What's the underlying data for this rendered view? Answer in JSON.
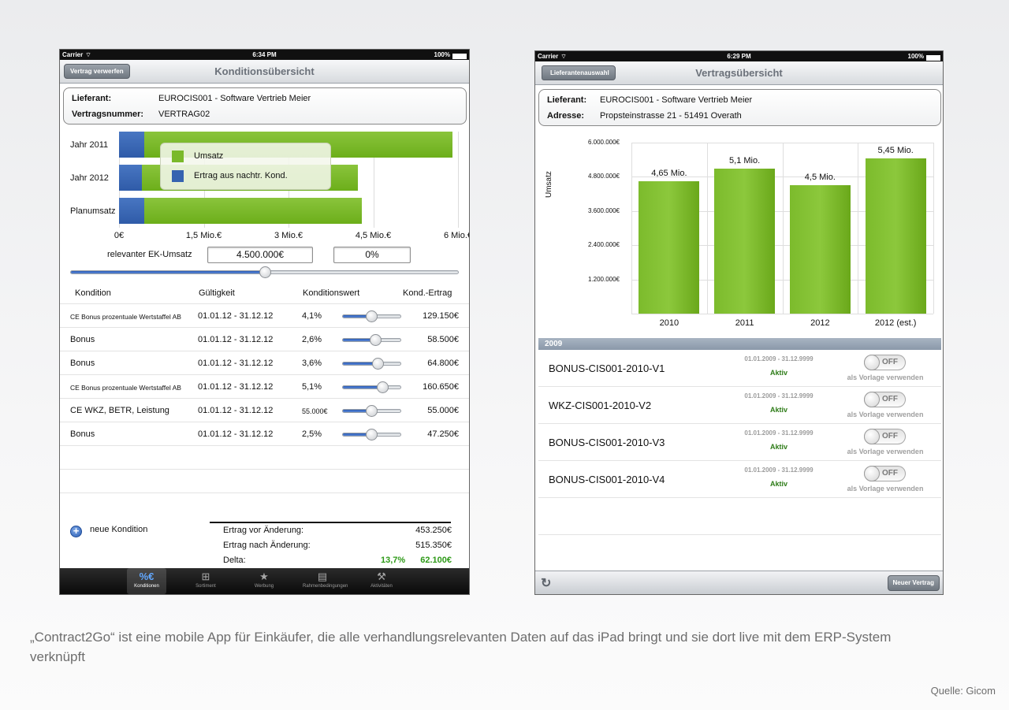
{
  "left": {
    "status": {
      "carrier": "Carrier",
      "time": "6:34 PM",
      "battery": "100%"
    },
    "nav": {
      "title": "Konditionsübersicht",
      "button": "Vertrag verwerfen"
    },
    "info": {
      "supplier_label": "Lieferant:",
      "supplier_value": "EUROCIS001 - Software Vertrieb Meier",
      "contract_label": "Vertragsnummer:",
      "contract_value": "VERTRAG02"
    },
    "chart_data": {
      "type": "bar",
      "orientation": "horizontal",
      "stacked": true,
      "categories": [
        "Jahr 2011",
        "Jahr 2012",
        "Planumsatz"
      ],
      "series": [
        {
          "name": "Umsatz",
          "color": "#7ab92a",
          "values": [
            5.45,
            3.83,
            3.85
          ]
        },
        {
          "name": "Ertrag aus nachtr. Kond.",
          "color": "#3563b0",
          "values": [
            0.45,
            0.4,
            0.45
          ]
        }
      ],
      "x_ticks": [
        "0€",
        "1,5 Mio.€",
        "3 Mio.€",
        "4,5 Mio.€",
        "6 Mio.€"
      ],
      "xlim": [
        0,
        6
      ],
      "legend_position": "top-center"
    },
    "ek": {
      "label": "relevanter EK-Umsatz",
      "amount": "4.500.000€",
      "percent": "0%",
      "slider_fraction": 0.5
    },
    "table": {
      "headers": [
        "Kondition",
        "Gültigkeit",
        "Konditionswert",
        "Kond.-Ertrag"
      ],
      "rows": [
        {
          "name": "CE Bonus prozentuale Wertstaffel AB",
          "validity": "01.01.12 - 31.12.12",
          "value": "4,1%",
          "slider": 0.49,
          "yield": "129.150€",
          "small": true
        },
        {
          "name": "Bonus",
          "validity": "01.01.12 - 31.12.12",
          "value": "2,6%",
          "slider": 0.56,
          "yield": "58.500€",
          "small": false
        },
        {
          "name": "Bonus",
          "validity": "01.01.12 - 31.12.12",
          "value": "3,6%",
          "slider": 0.6,
          "yield": "64.800€",
          "small": false
        },
        {
          "name": "CE Bonus prozentuale Wertstaffel AB",
          "validity": "01.01.12 - 31.12.12",
          "value": "5,1%",
          "slider": 0.69,
          "yield": "160.650€",
          "small": true
        },
        {
          "name": "CE WKZ, BETR, Leistung",
          "validity": "01.01.12 - 31.12.12",
          "value": "55.000€",
          "slider": 0.49,
          "yield": "55.000€",
          "small": false,
          "value_small": true
        },
        {
          "name": "Bonus",
          "validity": "01.01.12 - 31.12.12",
          "value": "2,5%",
          "slider": 0.49,
          "yield": "47.250€",
          "small": false
        }
      ]
    },
    "add_label": "neue Kondition",
    "summary": {
      "before_label": "Ertrag vor Änderung:",
      "before_value": "453.250€",
      "after_label": "Ertrag nach Änderung:",
      "after_value": "515.350€",
      "delta_label": "Delta:",
      "delta_percent": "13,7%",
      "delta_value": "62.100€"
    },
    "tabs": [
      {
        "label": "Konditionen",
        "icon": "percent-euro-icon",
        "glyph": "%€",
        "active": true
      },
      {
        "label": "Sortiment",
        "icon": "hierarchy-icon",
        "glyph": "⊞",
        "active": false
      },
      {
        "label": "Werbung",
        "icon": "star-icon",
        "glyph": "★",
        "active": false
      },
      {
        "label": "Rahmenbedingungen",
        "icon": "document-icon",
        "glyph": "▤",
        "active": false
      },
      {
        "label": "Aktivitäten",
        "icon": "tools-icon",
        "glyph": "⚒",
        "active": false
      }
    ]
  },
  "right": {
    "status": {
      "carrier": "Carrier",
      "time": "6:29 PM",
      "battery": "100%"
    },
    "nav": {
      "title": "Vertragsübersicht",
      "back_button": "Lieferantenauswahl"
    },
    "info": {
      "supplier_label": "Lieferant:",
      "supplier_value": "EUROCIS001 - Software Vertrieb Meier",
      "address_label": "Adresse:",
      "address_value": "Propsteinstrasse 21 - 51491 Overath"
    },
    "chart_data": {
      "type": "bar",
      "categories": [
        "2010",
        "2011",
        "2012",
        "2012 (est.)"
      ],
      "values": [
        4.65,
        5.1,
        4.5,
        5.45
      ],
      "data_labels": [
        "4,65 Mio.",
        "5,1 Mio.",
        "4,5 Mio.",
        "5,45 Mio."
      ],
      "ylabel": "Umsatz",
      "y_ticks": [
        "1.200.000€",
        "2.400.000€",
        "3.600.000€",
        "4.800.000€",
        "6.000.000€"
      ],
      "ylim": [
        0,
        6.0
      ],
      "color": "#7ab92a"
    },
    "section": "2009",
    "contracts": [
      {
        "name": "BONUS-CIS001-2010-V1",
        "dates": "01.01.2009 - 31.12.9999",
        "status": "Aktiv",
        "toggle": "OFF",
        "template": "als Vorlage verwenden"
      },
      {
        "name": "WKZ-CIS001-2010-V2",
        "dates": "01.01.2009 - 31.12.9999",
        "status": "Aktiv",
        "toggle": "OFF",
        "template": "als Vorlage verwenden"
      },
      {
        "name": "BONUS-CIS001-2010-V3",
        "dates": "01.01.2009 - 31.12.9999",
        "status": "Aktiv",
        "toggle": "OFF",
        "template": "als Vorlage verwenden"
      },
      {
        "name": "BONUS-CIS001-2010-V4",
        "dates": "01.01.2009 - 31.12.9999",
        "status": "Aktiv",
        "toggle": "OFF",
        "template": "als Vorlage verwenden"
      }
    ],
    "toolbar": {
      "new_contract": "Neuer Vertrag",
      "refresh_icon": "refresh-icon"
    }
  },
  "caption": "„Contract2Go“ ist eine mobile App für Einkäufer, die alle verhandlungsrelevanten Daten auf das iPad bringt und sie dort live mit dem ERP-System verknüpft",
  "credit": "Quelle: Gicom"
}
